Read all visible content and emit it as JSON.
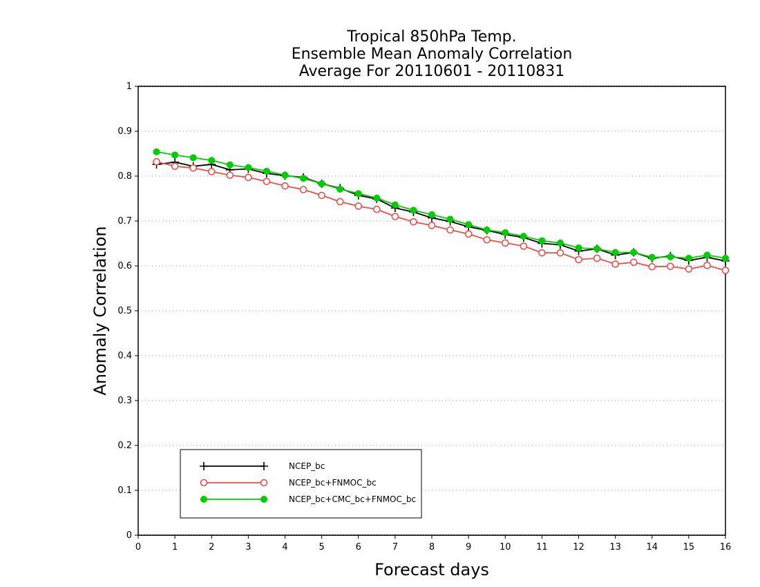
{
  "chart_data": {
    "type": "line",
    "title_lines": [
      "Tropical 850hPa Temp.",
      "Ensemble Mean Anomaly Correlation",
      "Average For 20110601 - 20110831"
    ],
    "xlabel": "Forecast days",
    "ylabel": "Anomaly Correlation",
    "xlim": [
      0,
      16
    ],
    "ylim": [
      0,
      1
    ],
    "x_ticks": [
      "0",
      "1",
      "2",
      "3",
      "4",
      "5",
      "6",
      "7",
      "8",
      "9",
      "10",
      "11",
      "12",
      "13",
      "14",
      "15",
      "16"
    ],
    "y_ticks": [
      "0",
      "0.1",
      "0.2",
      "0.3",
      "0.4",
      "0.5",
      "0.6",
      "0.7",
      "0.8",
      "0.9",
      "1"
    ],
    "grid": "dotted horizontal",
    "legend_position": "bottom-left",
    "x": [
      0.5,
      1,
      1.5,
      2,
      2.5,
      3,
      3.5,
      4,
      4.5,
      5,
      5.5,
      6,
      6.5,
      7,
      7.5,
      8,
      8.5,
      9,
      9.5,
      10,
      10.5,
      11,
      11.5,
      12,
      12.5,
      13,
      13.5,
      14,
      14.5,
      15,
      15.5,
      16
    ],
    "series": [
      {
        "name": "NCEP_bc",
        "color": "#000000",
        "marker": "plus",
        "values": [
          0.826,
          0.831,
          0.822,
          0.826,
          0.814,
          0.816,
          0.806,
          0.801,
          0.797,
          0.783,
          0.773,
          0.757,
          0.749,
          0.729,
          0.72,
          0.707,
          0.699,
          0.687,
          0.679,
          0.67,
          0.663,
          0.65,
          0.647,
          0.633,
          0.638,
          0.624,
          0.63,
          0.617,
          0.622,
          0.612,
          0.619,
          0.611
        ]
      },
      {
        "name": "NCEP_bc+FNMOC_bc",
        "color": "#e8504b",
        "marker": "circle-open",
        "values": [
          0.832,
          0.822,
          0.818,
          0.81,
          0.802,
          0.797,
          0.788,
          0.778,
          0.77,
          0.757,
          0.743,
          0.733,
          0.726,
          0.71,
          0.698,
          0.69,
          0.68,
          0.671,
          0.658,
          0.651,
          0.644,
          0.629,
          0.629,
          0.614,
          0.617,
          0.604,
          0.608,
          0.598,
          0.599,
          0.593,
          0.601,
          0.59
        ]
      },
      {
        "name": "NCEP_bc+CMC_bc+FNMOC_bc",
        "color": "#00cc00",
        "marker": "circle-filled",
        "values": [
          0.854,
          0.847,
          0.841,
          0.835,
          0.825,
          0.819,
          0.811,
          0.802,
          0.795,
          0.783,
          0.771,
          0.761,
          0.751,
          0.736,
          0.724,
          0.714,
          0.704,
          0.692,
          0.68,
          0.674,
          0.666,
          0.656,
          0.651,
          0.64,
          0.638,
          0.63,
          0.63,
          0.619,
          0.62,
          0.617,
          0.624,
          0.617
        ]
      }
    ]
  }
}
